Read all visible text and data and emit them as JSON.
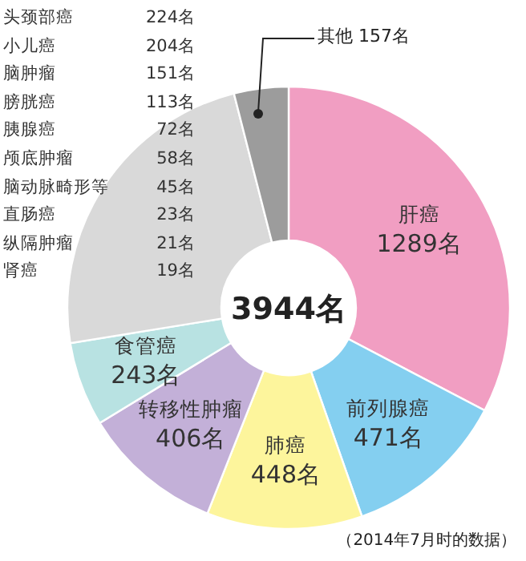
{
  "chart_data": {
    "type": "donut",
    "categories": [
      "肝癌",
      "前列腺癌",
      "肺癌",
      "转移性肿瘤",
      "食管癌",
      null,
      "其他"
    ],
    "values": [
      1289,
      471,
      448,
      406,
      243,
      930,
      157
    ],
    "value_labels": [
      "1289名",
      "471名",
      "448名",
      "406名",
      "243名",
      null,
      "157名"
    ],
    "colors": [
      "#f19ec2",
      "#84cff0",
      "#fdf59c",
      "#c3b0d8",
      "#b8e2e2",
      "#d9d9d9",
      "#9c9c9c"
    ],
    "annotations": [
      "3944名",
      "头颈部癌 224名",
      "小儿癌 204名",
      "脑肿瘤 151名",
      "膀胱癌 113名",
      "胰腺癌 72名",
      "颅底肿瘤 58名",
      "脑动脉畸形等 45名",
      "直肠癌 23名",
      "纵隔肿瘤 21名",
      "肾癌 19名",
      "（2014年7月时的数据）"
    ]
  }
}
